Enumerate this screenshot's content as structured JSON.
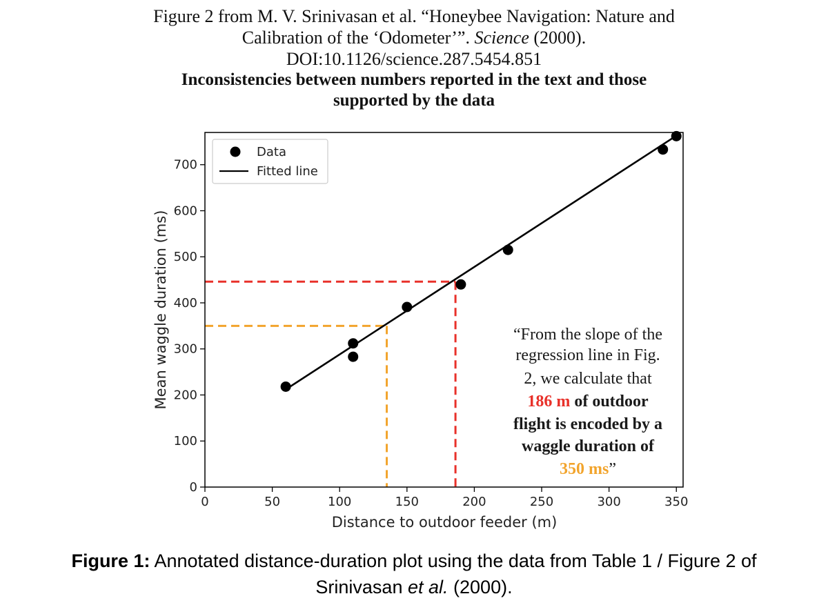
{
  "header": {
    "line1": "Figure 2 from M. V. Srinivasan et al. “Honeybee Navigation: Nature and",
    "line2_pre": "Calibration of the ‘Odometer’”. ",
    "line2_journal": "Science",
    "line2_post": " (2000).",
    "line3": "DOI:10.1126/science.287.5454.851",
    "bold1": "Inconsistencies between numbers reported in the text and those",
    "bold2": "supported by the data"
  },
  "chart_data": {
    "type": "scatter",
    "xlabel": "Distance to outdoor feeder (m)",
    "ylabel": "Mean waggle duration (ms)",
    "xlim": [
      0,
      355
    ],
    "ylim": [
      0,
      770
    ],
    "xticks": [
      0,
      50,
      100,
      150,
      200,
      250,
      300,
      350
    ],
    "yticks": [
      0,
      100,
      200,
      300,
      400,
      500,
      600,
      700
    ],
    "grid": false,
    "legend_position": "top-left",
    "series": [
      {
        "name": "Data",
        "kind": "scatter",
        "color": "#000000",
        "points": [
          {
            "x": 60,
            "y": 218
          },
          {
            "x": 110,
            "y": 312
          },
          {
            "x": 110,
            "y": 283
          },
          {
            "x": 150,
            "y": 391
          },
          {
            "x": 190,
            "y": 440
          },
          {
            "x": 225,
            "y": 515
          },
          {
            "x": 340,
            "y": 733
          },
          {
            "x": 350,
            "y": 762
          }
        ]
      },
      {
        "name": "Fitted line",
        "kind": "line",
        "color": "#000000",
        "from": {
          "x": 60,
          "y": 212
        },
        "to": {
          "x": 350,
          "y": 763
        }
      }
    ],
    "reference_lines": [
      {
        "x": 186,
        "y": 446,
        "color": "#e8312a"
      },
      {
        "x": 135,
        "y": 350,
        "color": "#f2a42c"
      }
    ],
    "annotation": {
      "line1": "“From the slope of the",
      "line2": "regression line in Fig.",
      "line3": "2, we calculate that",
      "line4_highlight": "186 m",
      "line4_rest": " of outdoor",
      "line5": "flight is encoded by a",
      "line6": "waggle duration of",
      "line7_highlight": "350 ms",
      "line7_rest": "”",
      "highlight1_color": "#e8312a",
      "highlight2_color": "#f2a42c"
    }
  },
  "caption": {
    "label": "Figure 1:",
    "text1": " Annotated distance-duration plot using the data from Table 1 / Figure 2 of",
    "text2_pre": "Srinivasan ",
    "text2_italic": "et al.",
    "text2_post": " (2000)."
  }
}
